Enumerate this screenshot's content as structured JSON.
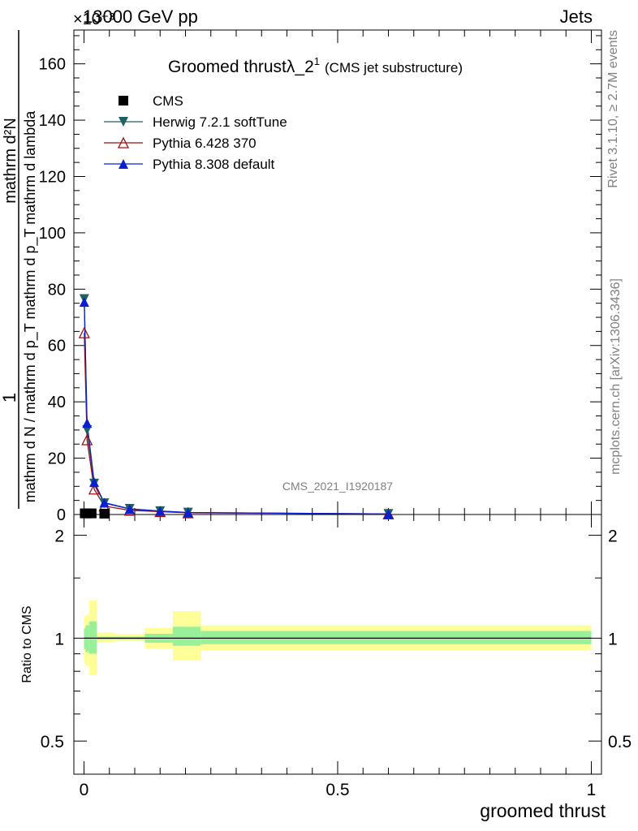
{
  "header": {
    "energy": "13000 GeV pp",
    "process": "Jets",
    "exponent": "×10⁻³"
  },
  "side_text": {
    "rivet": "Rivet 3.1.10, ≥ 2.7M events",
    "mcplots": "mcplots.cern.ch [arXiv:1306.3436]"
  },
  "plot_title": {
    "main": "Groomed thrustλ_2",
    "sup": "1",
    "sub": "(CMS jet substructure)"
  },
  "analysis_id": "CMS_2021_I1920187",
  "colors": {
    "cms": "#000000",
    "herwig": "#1f6060",
    "pythia6": "#a01010",
    "pythia8": "#0a1fd0",
    "band_inner": "#99f099",
    "band_outer": "#ffff99"
  },
  "chart_data": [
    {
      "type": "line",
      "panel": "main",
      "title": "Groomed thrustλ_2^1 (CMS jet substructure)",
      "xlabel": "groomed thrust",
      "ylabel": "1 / mathrm d N / mathrm d p_T mathrm d p_T mathrm d lambda mathrm d^2N",
      "y_multiplier": "×10⁻³",
      "xlim": [
        -0.02,
        1.02
      ],
      "ylim": [
        0,
        172
      ],
      "y_ticks": [
        0,
        20,
        40,
        60,
        80,
        100,
        120,
        140,
        160
      ],
      "legend_position": "top-left",
      "series": [
        {
          "name": "CMS",
          "marker": "square",
          "x": [
            0.0015,
            0.006,
            0.015,
            0.04
          ],
          "y": [
            0.4,
            0.4,
            0.4,
            0.3
          ]
        },
        {
          "name": "Herwig 7.2.1 softTune",
          "marker": "triangle-down",
          "x": [
            0.0005,
            0.006,
            0.02,
            0.04,
            0.09,
            0.15,
            0.205,
            0.6
          ],
          "y": [
            76.5,
            30.0,
            11.0,
            4.0,
            2.0,
            1.2,
            0.7,
            0.2
          ]
        },
        {
          "name": "Pythia 6.428 370",
          "marker": "triangle-open",
          "x": [
            0.0005,
            0.006,
            0.02,
            0.04,
            0.09,
            0.15,
            0.205,
            0.6
          ],
          "y": [
            64.5,
            26.5,
            9.0,
            3.0,
            1.5,
            1.0,
            0.6,
            0.2
          ]
        },
        {
          "name": "Pythia 8.308 default",
          "marker": "triangle-up",
          "x": [
            0.0005,
            0.006,
            0.02,
            0.04,
            0.09,
            0.15,
            0.205,
            0.6
          ],
          "y": [
            75.5,
            32.5,
            11.5,
            4.2,
            2.0,
            1.2,
            0.7,
            0.2
          ]
        }
      ]
    },
    {
      "type": "area",
      "panel": "ratio",
      "ylabel": "Ratio to CMS",
      "xlabel": "groomed thrust",
      "xlim": [
        -0.02,
        1.02
      ],
      "ylim": [
        0.4,
        2.3
      ],
      "y_scale": "log",
      "y_ticks": [
        0.5,
        1,
        2
      ],
      "x_ticks": [
        0,
        0.5,
        1
      ],
      "ratio_line": 1,
      "bands": [
        {
          "x0": 0.0,
          "x1": 0.003,
          "inner": [
            0.93,
            1.07
          ],
          "outer": [
            0.84,
            1.16
          ]
        },
        {
          "x0": 0.003,
          "x1": 0.01,
          "inner": [
            0.91,
            1.09
          ],
          "outer": [
            0.83,
            1.17
          ]
        },
        {
          "x0": 0.01,
          "x1": 0.025,
          "inner": [
            0.9,
            1.12
          ],
          "outer": [
            0.78,
            1.29
          ]
        },
        {
          "x0": 0.025,
          "x1": 0.06,
          "inner": [
            0.99,
            1.01
          ],
          "outer": [
            0.97,
            1.04
          ]
        },
        {
          "x0": 0.06,
          "x1": 0.12,
          "inner": [
            0.99,
            1.01
          ],
          "outer": [
            0.98,
            1.03
          ]
        },
        {
          "x0": 0.12,
          "x1": 0.175,
          "inner": [
            0.97,
            1.03
          ],
          "outer": [
            0.93,
            1.07
          ]
        },
        {
          "x0": 0.175,
          "x1": 0.23,
          "inner": [
            0.95,
            1.08
          ],
          "outer": [
            0.86,
            1.2
          ]
        },
        {
          "x0": 0.23,
          "x1": 1.0,
          "inner": [
            0.96,
            1.05
          ],
          "outer": [
            0.92,
            1.09
          ]
        }
      ]
    }
  ]
}
